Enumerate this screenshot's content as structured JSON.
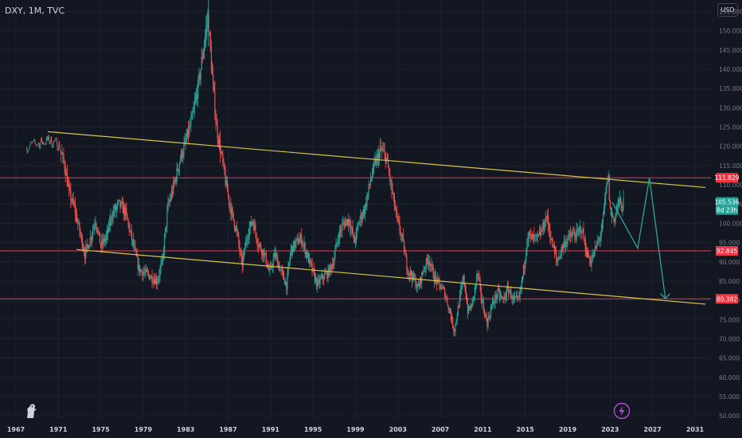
{
  "symbol_line": "DXY, 1M, TVC",
  "currency_button": "USD",
  "colors": {
    "background": "#131722",
    "grid": "#1e222d",
    "up": "#26a69a",
    "down": "#ef5350",
    "trendline": "#d8c24a",
    "level": "#f23645",
    "projection": "#2a9d8f",
    "axis_text": "#787b86"
  },
  "icons": [
    "tradingview-logo-icon",
    "lightning-icon"
  ],
  "chart_data": {
    "type": "candlestick",
    "title": "",
    "x_ticks": [
      "1967",
      "1971",
      "1975",
      "1979",
      "1983",
      "1987",
      "1991",
      "1995",
      "1999",
      "2003",
      "2007",
      "2011",
      "2015",
      "2019",
      "2023",
      "2027",
      "2031"
    ],
    "y_ticks": [
      "50.000",
      "55.000",
      "60.000",
      "65.000",
      "70.000",
      "75.000",
      "80.000",
      "85.000",
      "90.000",
      "95.000",
      "100.000",
      "105.000",
      "110.000",
      "115.000",
      "120.000",
      "125.000",
      "130.000",
      "135.000",
      "140.000",
      "145.000",
      "150.000",
      "155.000"
    ],
    "ylim": [
      49,
      158
    ],
    "xlim": [
      1965.5,
      2032.5
    ],
    "y_axis_side": "right",
    "grid": true,
    "price_labels": [
      {
        "value": 111.829,
        "label": "111.829",
        "kind": "level"
      },
      {
        "value": 105.536,
        "label": "105.536",
        "sublabel": "8d 23h",
        "kind": "last"
      },
      {
        "value": 92.845,
        "label": "92.845",
        "kind": "level"
      },
      {
        "value": 80.382,
        "label": "80.382",
        "kind": "level"
      }
    ],
    "horizontal_levels": [
      111.829,
      92.845,
      80.382
    ],
    "trendlines": [
      {
        "name": "upper",
        "points": [
          [
            1970.0,
            123.8
          ],
          [
            2032.0,
            109.3
          ]
        ]
      },
      {
        "name": "lower",
        "points": [
          [
            1972.7,
            93.2
          ],
          [
            2032.0,
            79.0
          ]
        ]
      }
    ],
    "projection_path": [
      [
        2023.2,
        105.5
      ],
      [
        2024.2,
        100.5
      ],
      [
        2025.6,
        93.5
      ],
      [
        2026.7,
        111.8
      ],
      [
        2027.5,
        95.0
      ],
      [
        2028.2,
        80.5
      ]
    ],
    "price_path": [
      [
        1968.0,
        119.9
      ],
      [
        1970.0,
        121.5
      ],
      [
        1971.0,
        120.5
      ],
      [
        1971.6,
        115
      ],
      [
        1972.0,
        108
      ],
      [
        1972.5,
        104
      ],
      [
        1973.0,
        98
      ],
      [
        1973.5,
        92
      ],
      [
        1974.0,
        96
      ],
      [
        1974.5,
        101
      ],
      [
        1975.0,
        94
      ],
      [
        1975.6,
        97
      ],
      [
        1976.0,
        102
      ],
      [
        1976.7,
        105
      ],
      [
        1977.3,
        103
      ],
      [
        1978.0,
        95
      ],
      [
        1978.6,
        88
      ],
      [
        1979.2,
        87
      ],
      [
        1979.8,
        86
      ],
      [
        1980.3,
        85
      ],
      [
        1980.8,
        90
      ],
      [
        1981.3,
        104
      ],
      [
        1981.8,
        109
      ],
      [
        1982.5,
        117
      ],
      [
        1983.0,
        121
      ],
      [
        1983.6,
        127
      ],
      [
        1984.2,
        136
      ],
      [
        1984.7,
        146
      ],
      [
        1985.1,
        154
      ],
      [
        1985.5,
        138
      ],
      [
        1985.9,
        125
      ],
      [
        1986.4,
        117
      ],
      [
        1986.8,
        110
      ],
      [
        1987.3,
        103
      ],
      [
        1987.8,
        98
      ],
      [
        1988.3,
        89
      ],
      [
        1988.8,
        97
      ],
      [
        1989.3,
        101
      ],
      [
        1989.8,
        95
      ],
      [
        1990.4,
        92
      ],
      [
        1990.9,
        87
      ],
      [
        1991.4,
        92
      ],
      [
        1991.9,
        88
      ],
      [
        1992.5,
        84
      ],
      [
        1992.9,
        93
      ],
      [
        1993.4,
        95
      ],
      [
        1993.9,
        96
      ],
      [
        1994.4,
        92
      ],
      [
        1994.9,
        88
      ],
      [
        1995.4,
        84
      ],
      [
        1995.9,
        86
      ],
      [
        1996.4,
        87
      ],
      [
        1996.9,
        90
      ],
      [
        1997.4,
        97
      ],
      [
        1997.9,
        100
      ],
      [
        1998.4,
        101
      ],
      [
        1998.9,
        95
      ],
      [
        1999.4,
        101
      ],
      [
        1999.9,
        104
      ],
      [
        2000.4,
        111
      ],
      [
        2000.9,
        116
      ],
      [
        2001.4,
        119
      ],
      [
        2001.9,
        117
      ],
      [
        2002.4,
        109
      ],
      [
        2002.9,
        101
      ],
      [
        2003.4,
        96
      ],
      [
        2003.9,
        88
      ],
      [
        2004.4,
        86
      ],
      [
        2004.9,
        83
      ],
      [
        2005.4,
        88
      ],
      [
        2005.9,
        91
      ],
      [
        2006.4,
        86
      ],
      [
        2006.9,
        84
      ],
      [
        2007.4,
        82
      ],
      [
        2007.9,
        77
      ],
      [
        2008.3,
        72
      ],
      [
        2008.8,
        80
      ],
      [
        2009.2,
        86
      ],
      [
        2009.6,
        77
      ],
      [
        2010.0,
        79
      ],
      [
        2010.5,
        87
      ],
      [
        2010.9,
        80
      ],
      [
        2011.4,
        74
      ],
      [
        2011.9,
        79
      ],
      [
        2012.4,
        82
      ],
      [
        2012.9,
        80
      ],
      [
        2013.4,
        83
      ],
      [
        2013.9,
        80
      ],
      [
        2014.4,
        80
      ],
      [
        2014.9,
        89
      ],
      [
        2015.2,
        97
      ],
      [
        2015.7,
        96
      ],
      [
        2016.2,
        96
      ],
      [
        2016.7,
        99
      ],
      [
        2017.0,
        102
      ],
      [
        2017.5,
        95
      ],
      [
        2018.0,
        90
      ],
      [
        2018.5,
        94
      ],
      [
        2019.0,
        96
      ],
      [
        2019.5,
        97
      ],
      [
        2019.9,
        97
      ],
      [
        2020.3,
        99
      ],
      [
        2020.8,
        92
      ],
      [
        2021.2,
        90
      ],
      [
        2021.7,
        94
      ],
      [
        2022.2,
        98
      ],
      [
        2022.6,
        108
      ],
      [
        2022.8,
        113
      ],
      [
        2023.0,
        103
      ],
      [
        2023.4,
        101
      ],
      [
        2023.8,
        106
      ],
      [
        2024.1,
        104
      ],
      [
        2024.3,
        105.5
      ]
    ]
  }
}
